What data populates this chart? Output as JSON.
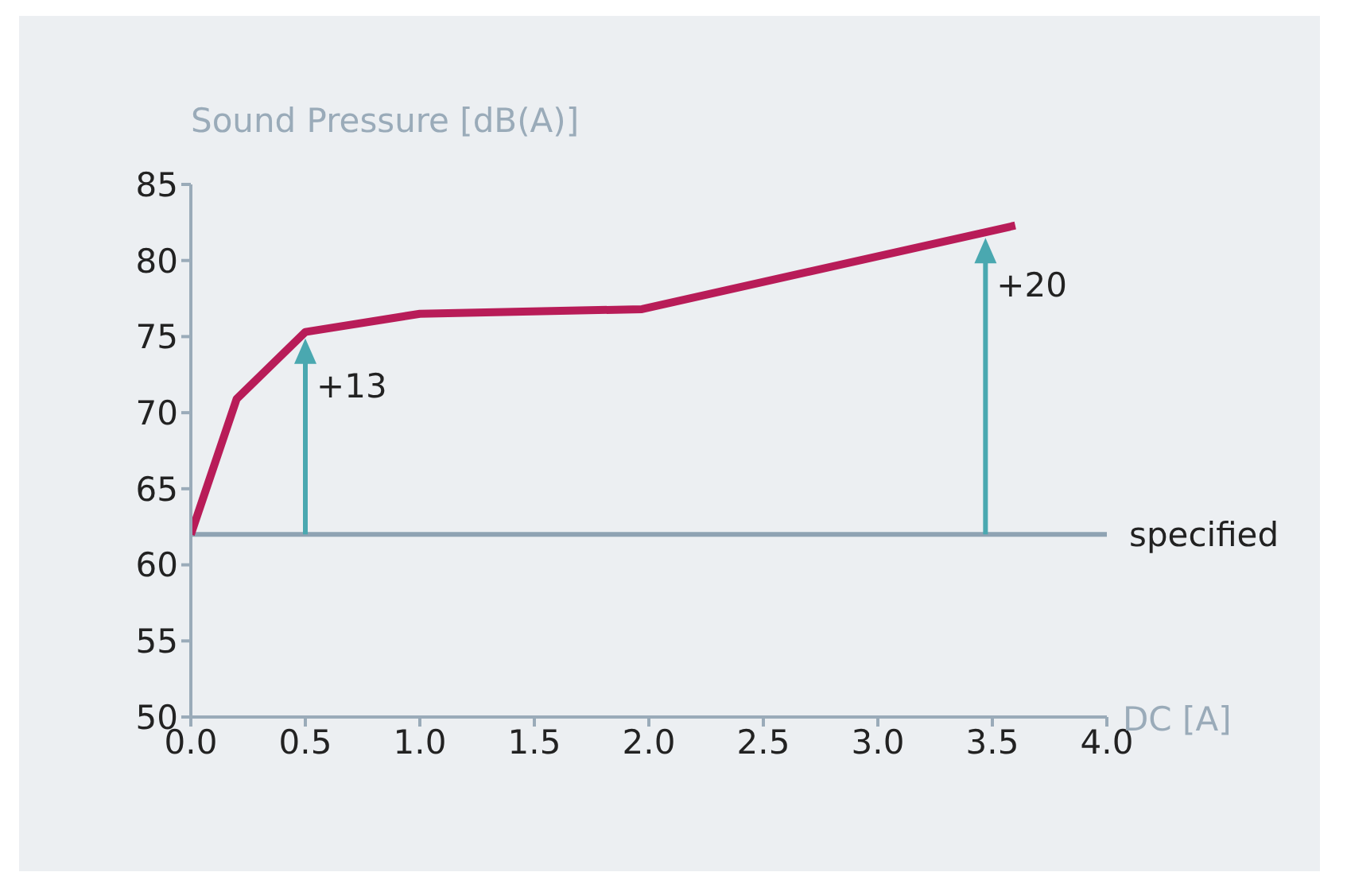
{
  "chart_data": {
    "type": "line",
    "xlabel": "DC [A]",
    "ylabel": "Sound Pressure [dB(A)]",
    "x": [
      0,
      0.2,
      0.5,
      1.0,
      1.97,
      3.6
    ],
    "series": [
      {
        "color": "#b81c58",
        "values": [
          62,
          70.9,
          75.3,
          76.5,
          76.8,
          82.3
        ]
      }
    ],
    "xlim": [
      0,
      4
    ],
    "xticks": [
      {
        "value": 0,
        "label": "0.0"
      },
      {
        "value": 0.5,
        "label": "0.5"
      },
      {
        "value": 1,
        "label": "1.0"
      },
      {
        "value": 1.5,
        "label": "1.5"
      },
      {
        "value": 2,
        "label": "2.0"
      },
      {
        "value": 2.5,
        "label": "2.5"
      },
      {
        "value": 3,
        "label": "3.0"
      },
      {
        "value": 3.5,
        "label": "3.5"
      },
      {
        "value": 4,
        "label": "4.0"
      }
    ],
    "ylim": [
      50,
      85
    ],
    "yticks": [
      50,
      55,
      60,
      65,
      70,
      75,
      80,
      85
    ],
    "ref_lines": [
      {
        "axis": "y",
        "value": 62,
        "label": "specified",
        "color": "#8fa3b3"
      }
    ],
    "annotations": [
      {
        "text": "+13",
        "x": 0.5,
        "y": 75.3
      },
      {
        "text": "+20",
        "x": 3.47,
        "y": 81.9
      }
    ],
    "marker": "none",
    "line_style": "solid"
  }
}
